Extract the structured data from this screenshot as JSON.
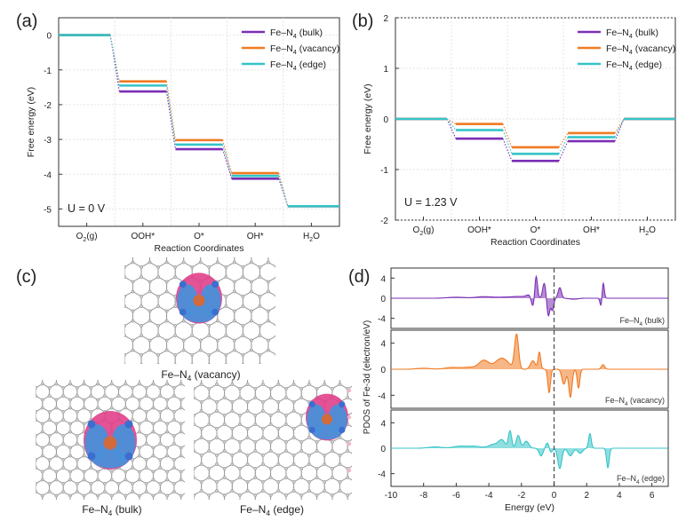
{
  "panels": {
    "a": {
      "letter": "(a)"
    },
    "b": {
      "letter": "(b)"
    },
    "c": {
      "letter": "(c)"
    },
    "d": {
      "letter": "(d)"
    }
  },
  "colors": {
    "bulk": "#7b2fb5",
    "vacancy": "#f07a22",
    "edge": "#35c4c8",
    "isoPink": "#e0408a",
    "isoBlue": "#4a8fd8"
  },
  "structures": {
    "vacancy": {
      "label": "Fe–N4 (vacancy)"
    },
    "bulk": {
      "label": "Fe–N4 (bulk)"
    },
    "edge": {
      "label": "Fe–N4 (edge)"
    }
  },
  "chart_data": [
    {
      "id": "a",
      "type": "line",
      "subtype": "free-energy-step-diagram",
      "xlabel": "Reaction Coordinates",
      "ylabel": "Free energy (eV)",
      "categories": [
        "O2(g)",
        "OOH*",
        "O*",
        "OH*",
        "H2O"
      ],
      "ylim": [
        -5.5,
        0.5
      ],
      "yticks": [
        0,
        -1,
        -2,
        -3,
        -4,
        -5
      ],
      "ytick_labels": [
        "0",
        "-1",
        "-2",
        "-3",
        "-4",
        "-5"
      ],
      "annotation": "U = 0 V",
      "legend_position": "top-right",
      "grid": true,
      "series": [
        {
          "name": "Fe–N4 (bulk)",
          "color": "#7b2fb5",
          "values": [
            0,
            -1.62,
            -3.28,
            -4.13,
            -4.92
          ]
        },
        {
          "name": "Fe–N4 (vacancy)",
          "color": "#f07a22",
          "values": [
            0,
            -1.33,
            -3.02,
            -3.97,
            -4.92
          ]
        },
        {
          "name": "Fe–N4 (edge)",
          "color": "#35c4c8",
          "values": [
            0,
            -1.45,
            -3.15,
            -4.05,
            -4.92
          ]
        }
      ]
    },
    {
      "id": "b",
      "type": "line",
      "subtype": "free-energy-step-diagram",
      "xlabel": "Reaction Coordinates",
      "ylabel": "Free energy (eV)",
      "categories": [
        "O2(g)",
        "OOH*",
        "O*",
        "OH*",
        "H2O"
      ],
      "ylim": [
        -2,
        2
      ],
      "yticks": [
        2,
        1,
        0,
        -1,
        -2
      ],
      "ytick_labels": [
        "2",
        "1",
        "0",
        "-1",
        "-2"
      ],
      "annotation": "U = 1.23 V",
      "legend_position": "top-right",
      "grid": true,
      "series": [
        {
          "name": "Fe–N4 (bulk)",
          "color": "#7b2fb5",
          "values": [
            0,
            -0.39,
            -0.83,
            -0.44,
            0
          ]
        },
        {
          "name": "Fe–N4 (vacancy)",
          "color": "#f07a22",
          "values": [
            0,
            -0.1,
            -0.56,
            -0.28,
            0
          ]
        },
        {
          "name": "Fe–N4 (edge)",
          "color": "#35c4c8",
          "values": [
            0,
            -0.22,
            -0.69,
            -0.36,
            0
          ]
        }
      ]
    },
    {
      "id": "d",
      "type": "area",
      "subtype": "stacked-pdos",
      "xlabel": "Energy (eV)",
      "ylabel": "PDOS of Fe-3d (electron/eV)",
      "xlim": [
        -10,
        7
      ],
      "xticks": [
        -10,
        -8,
        -6,
        -4,
        -2,
        0,
        2,
        4,
        6
      ],
      "xtick_labels": [
        "-10",
        "-8",
        "-6",
        "-4",
        "-2",
        "0",
        "2",
        "4",
        "6"
      ],
      "ylim": [
        -6,
        6
      ],
      "yticks": [
        4,
        0,
        -4
      ],
      "ytick_labels": [
        "4",
        "0",
        "-4"
      ],
      "fermi_level": 0,
      "series": [
        {
          "name": "Fe–N4 (bulk)",
          "color": "#7b2fb5",
          "peaks": [
            [
              -6.0,
              0.2,
              0.5
            ],
            [
              -4.3,
              0.3,
              0.5
            ],
            [
              -3.0,
              0.2,
              0.5
            ],
            [
              -2.1,
              0.3,
              0.4
            ],
            [
              -1.5,
              0.6,
              0.2
            ],
            [
              -1.1,
              4.5,
              0.08
            ],
            [
              -0.6,
              3.0,
              0.1
            ],
            [
              -0.1,
              -2.4,
              0.08
            ],
            [
              0.35,
              2.1,
              0.1
            ],
            [
              -1.3,
              -2.0,
              0.1
            ],
            [
              -0.35,
              -3.6,
              0.09
            ],
            [
              1.2,
              -0.2,
              0.25
            ],
            [
              3.0,
              3.6,
              0.07
            ],
            [
              2.9,
              -2.2,
              0.07
            ]
          ]
        },
        {
          "name": "Fe–N4 (vacancy)",
          "color": "#f07a22",
          "peaks": [
            [
              -8.0,
              0.15,
              0.4
            ],
            [
              -6.3,
              0.25,
              0.4
            ],
            [
              -5.2,
              0.3,
              0.5
            ],
            [
              -4.3,
              1.3,
              0.3
            ],
            [
              -3.2,
              1.7,
              0.4
            ],
            [
              -2.3,
              5.3,
              0.12
            ],
            [
              -1.3,
              1.3,
              0.15
            ],
            [
              -0.9,
              2.6,
              0.08
            ],
            [
              -0.3,
              -3.6,
              0.08
            ],
            [
              0.6,
              -2.3,
              0.12
            ],
            [
              1.0,
              -4.3,
              0.1
            ],
            [
              1.5,
              -2.9,
              0.08
            ],
            [
              3.0,
              0.7,
              0.1
            ]
          ]
        },
        {
          "name": "Fe–N4 (edge)",
          "color": "#35c4c8",
          "peaks": [
            [
              -7.3,
              0.2,
              0.4
            ],
            [
              -5.8,
              0.3,
              0.4
            ],
            [
              -4.9,
              0.3,
              0.4
            ],
            [
              -3.7,
              0.6,
              0.3
            ],
            [
              -3.2,
              1.2,
              0.2
            ],
            [
              -2.7,
              2.7,
              0.1
            ],
            [
              -2.2,
              2.0,
              0.12
            ],
            [
              -1.7,
              1.1,
              0.15
            ],
            [
              -0.8,
              -1.2,
              0.12
            ],
            [
              -0.4,
              0.9,
              0.1
            ],
            [
              -0.2,
              -0.7,
              0.1
            ],
            [
              0.35,
              -3.2,
              0.12
            ],
            [
              1.0,
              -1.2,
              0.15
            ],
            [
              1.6,
              -0.8,
              0.15
            ],
            [
              2.2,
              2.3,
              0.08
            ],
            [
              3.3,
              -3.1,
              0.08
            ]
          ]
        }
      ]
    }
  ]
}
